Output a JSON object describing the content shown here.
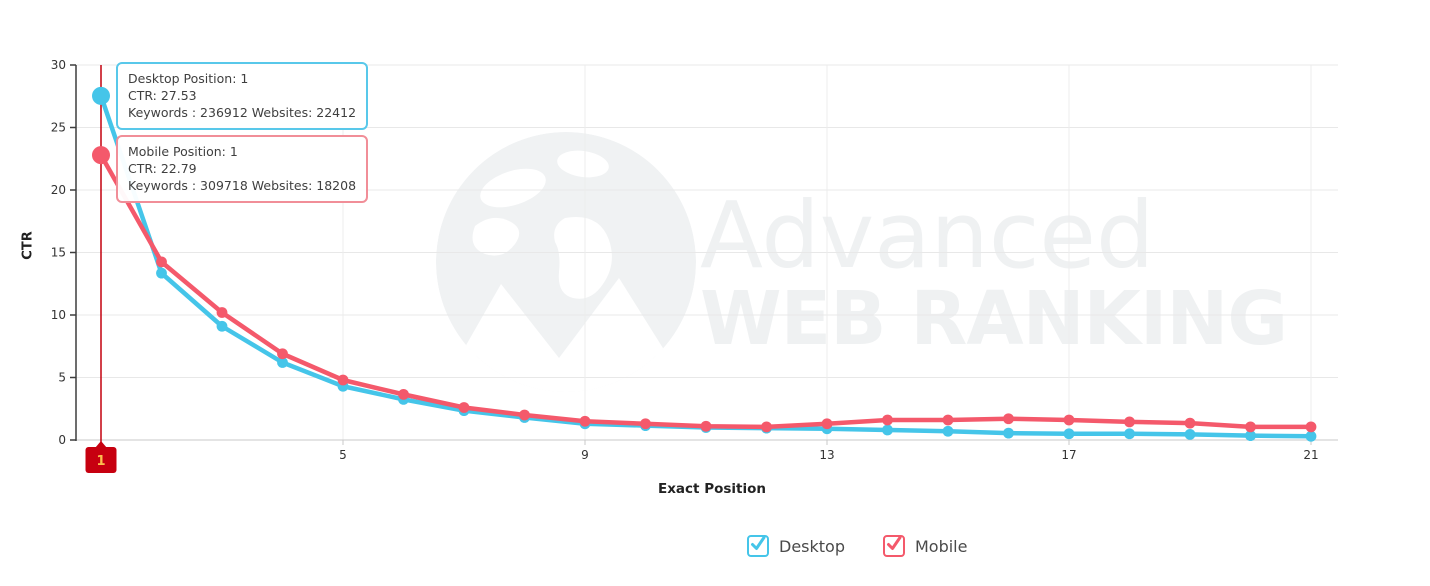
{
  "chart_data": {
    "type": "line",
    "title": "",
    "xlabel": "Exact Position",
    "ylabel": "CTR",
    "x": [
      1,
      2,
      3,
      4,
      5,
      6,
      7,
      8,
      9,
      10,
      11,
      12,
      13,
      14,
      15,
      16,
      17,
      18,
      19,
      20,
      21
    ],
    "xticks": [
      1,
      5,
      9,
      13,
      17,
      21
    ],
    "yticks": [
      0,
      5,
      10,
      15,
      20,
      25,
      30
    ],
    "xlim": [
      1,
      21
    ],
    "ylim": [
      0,
      30
    ],
    "grid": true,
    "legend_position": "bottom",
    "highlight_position": 1,
    "series": [
      {
        "name": "Desktop",
        "color": "#45c5e9",
        "values": [
          27.53,
          13.35,
          9.1,
          6.2,
          4.3,
          3.25,
          2.35,
          1.8,
          1.3,
          1.15,
          1.0,
          0.95,
          0.9,
          0.8,
          0.7,
          0.55,
          0.5,
          0.5,
          0.45,
          0.35,
          0.3
        ]
      },
      {
        "name": "Mobile",
        "color": "#f4596b",
        "values": [
          22.79,
          14.25,
          10.2,
          6.9,
          4.8,
          3.65,
          2.6,
          2.0,
          1.5,
          1.3,
          1.1,
          1.05,
          1.3,
          1.6,
          1.6,
          1.7,
          1.6,
          1.45,
          1.35,
          1.05,
          1.05
        ]
      }
    ]
  },
  "tooltips": {
    "desktop": {
      "line1": "Desktop Position: 1",
      "line2": "CTR: 27.53",
      "line3": "Keywords : 236912 Websites: 22412",
      "border_color": "#58c8ea"
    },
    "mobile": {
      "line1": "Mobile Position: 1",
      "line2": "CTR: 22.79",
      "line3": "Keywords : 309718 Websites: 18208",
      "border_color": "#f18e98"
    }
  },
  "position_marker": {
    "label": "1",
    "background": "#c70010",
    "text_color": "#fdc04e",
    "line_color": "#c3000f"
  },
  "legend": [
    {
      "label": "Desktop",
      "color": "#45c5e9"
    },
    {
      "label": "Mobile",
      "color": "#f4596b"
    }
  ],
  "watermark": {
    "line1": "Advanced",
    "line2": "WEB RANKING",
    "color": "#eff1f2"
  }
}
